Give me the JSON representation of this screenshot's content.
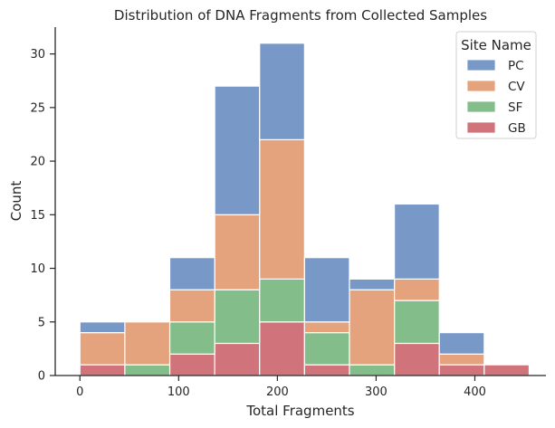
{
  "chart_data": {
    "type": "histogram",
    "title": "Distribution of DNA Fragments from Collected Samples",
    "xlabel": "Total Fragments",
    "ylabel": "Count",
    "xlim": [
      -25,
      472
    ],
    "ylim": [
      0,
      32.5
    ],
    "xticks": [
      0,
      100,
      200,
      300,
      400
    ],
    "yticks": [
      0,
      5,
      10,
      15,
      20,
      25,
      30
    ],
    "bin_edges": [
      0,
      45.5,
      91,
      136.5,
      182,
      227.5,
      273,
      318.5,
      364,
      409.5,
      455
    ],
    "stacked": true,
    "series": [
      {
        "name": "GB",
        "color": "#d1737a",
        "values": [
          1,
          0,
          2,
          3,
          5,
          1,
          0,
          3,
          1,
          1
        ]
      },
      {
        "name": "SF",
        "color": "#82bd8a",
        "values": [
          0,
          1,
          3,
          5,
          4,
          3,
          1,
          4,
          0,
          0
        ]
      },
      {
        "name": "CV",
        "color": "#e4a37d",
        "values": [
          3,
          4,
          3,
          7,
          13,
          1,
          7,
          2,
          1,
          0
        ]
      },
      {
        "name": "PC",
        "color": "#7898c8",
        "values": [
          1,
          0,
          3,
          12,
          9,
          6,
          1,
          7,
          2,
          0
        ]
      }
    ],
    "legend": {
      "title": "Site Name",
      "placement": "top-right",
      "entries": [
        "PC",
        "CV",
        "SF",
        "GB"
      ]
    },
    "grid": false
  }
}
